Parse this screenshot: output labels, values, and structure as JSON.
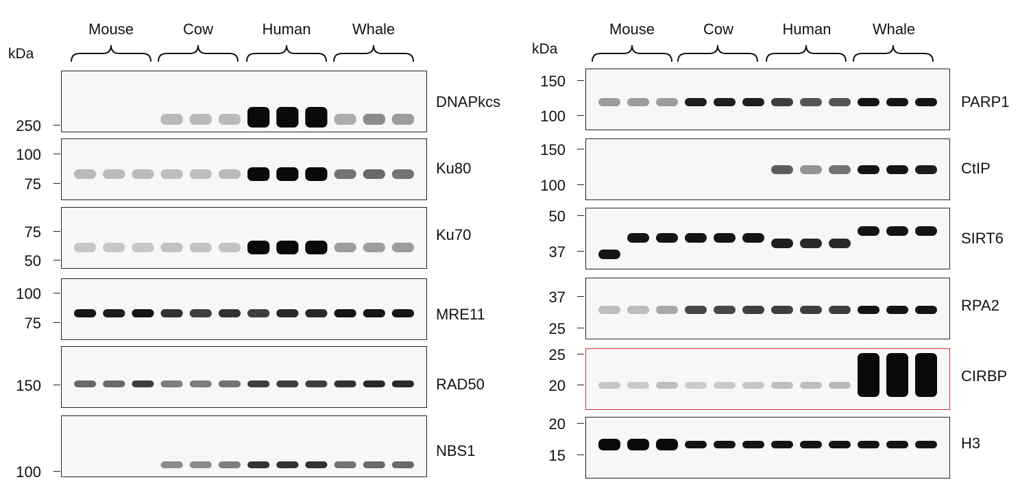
{
  "panels": [
    {
      "id": "left",
      "kda_label": "kDa",
      "species": [
        "Mouse",
        "Cow",
        "Human",
        "Whale"
      ],
      "blots": [
        {
          "protein": "DNAPkcs",
          "ticks": [
            "250"
          ],
          "highlight": false
        },
        {
          "protein": "Ku80",
          "ticks": [
            "100",
            "75"
          ],
          "highlight": false
        },
        {
          "protein": "Ku70",
          "ticks": [
            "75",
            "50"
          ],
          "highlight": false
        },
        {
          "protein": "MRE11",
          "ticks": [
            "100",
            "75"
          ],
          "highlight": false
        },
        {
          "protein": "RAD50",
          "ticks": [
            "150"
          ],
          "highlight": false
        },
        {
          "protein": "NBS1",
          "ticks": [
            "100"
          ],
          "highlight": false
        }
      ]
    },
    {
      "id": "right",
      "kda_label": "kDa",
      "species": [
        "Mouse",
        "Cow",
        "Human",
        "Whale"
      ],
      "blots": [
        {
          "protein": "PARP1",
          "ticks": [
            "150",
            "100"
          ],
          "highlight": false
        },
        {
          "protein": "CtIP",
          "ticks": [
            "150",
            "100"
          ],
          "highlight": false
        },
        {
          "protein": "SIRT6",
          "ticks": [
            "50",
            "37"
          ],
          "highlight": false
        },
        {
          "protein": "RPA2",
          "ticks": [
            "37",
            "25"
          ],
          "highlight": false
        },
        {
          "protein": "CIRBP",
          "ticks": [
            "25",
            "20"
          ],
          "highlight": true
        },
        {
          "protein": "H3",
          "ticks": [
            "20",
            "15"
          ],
          "highlight": false
        }
      ]
    }
  ],
  "band_intensity": {
    "DNAPkcs": [
      0,
      0,
      0,
      0.12,
      0.12,
      0.12,
      1.0,
      1.0,
      1.0,
      0.18,
      0.35,
      0.25
    ],
    "Ku80": [
      0.12,
      0.12,
      0.12,
      0.1,
      0.1,
      0.12,
      1.0,
      1.0,
      1.0,
      0.45,
      0.5,
      0.45
    ],
    "Ku70": [
      0.06,
      0.06,
      0.06,
      0.08,
      0.08,
      0.08,
      1.0,
      1.0,
      1.0,
      0.25,
      0.25,
      0.25
    ],
    "MRE11": [
      0.9,
      0.85,
      0.9,
      0.75,
      0.7,
      0.75,
      0.7,
      0.8,
      0.8,
      0.9,
      0.9,
      0.9
    ],
    "RAD50": [
      0.5,
      0.5,
      0.7,
      0.4,
      0.4,
      0.45,
      0.7,
      0.7,
      0.7,
      0.75,
      0.8,
      0.8
    ],
    "NBS1": [
      0,
      0,
      0,
      0.35,
      0.35,
      0.4,
      0.75,
      0.75,
      0.75,
      0.45,
      0.5,
      0.5
    ],
    "PARP1": [
      0.25,
      0.25,
      0.25,
      0.85,
      0.85,
      0.85,
      0.7,
      0.6,
      0.6,
      0.9,
      0.9,
      0.9
    ],
    "CtIP": [
      0,
      0,
      0,
      0,
      0,
      0,
      0.55,
      0.3,
      0.45,
      0.9,
      0.9,
      0.85
    ],
    "SIRT6": [
      0.9,
      0.9,
      0.9,
      0.9,
      0.9,
      0.9,
      0.85,
      0.8,
      0.8,
      0.9,
      0.9,
      0.9
    ],
    "RPA2": [
      0.1,
      0.1,
      0.2,
      0.65,
      0.65,
      0.7,
      0.7,
      0.7,
      0.7,
      0.9,
      0.9,
      0.9
    ],
    "CIRBP": [
      0.06,
      0.04,
      0.1,
      0.03,
      0.04,
      0.06,
      0.1,
      0.1,
      0.12,
      1.0,
      1.0,
      1.0
    ],
    "H3": [
      0.95,
      0.95,
      0.95,
      0.9,
      0.9,
      0.9,
      0.9,
      0.9,
      0.9,
      0.9,
      0.9,
      0.9
    ]
  }
}
